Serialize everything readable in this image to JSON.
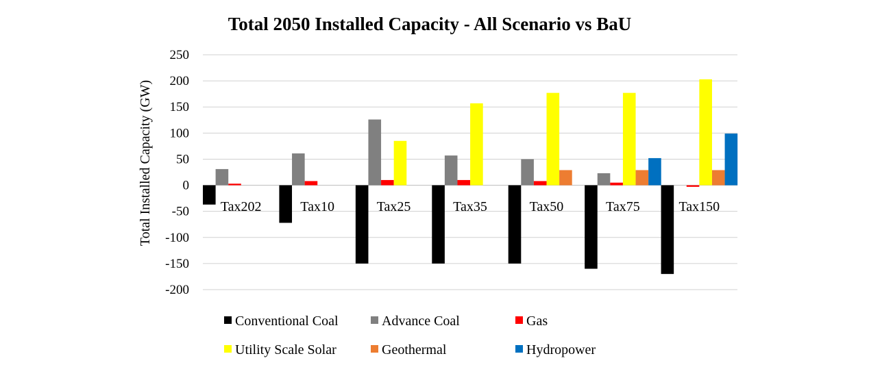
{
  "chart_data": {
    "type": "bar",
    "title": "Total 2050 Installed Capacity - All Scenario vs BaU",
    "xlabel": "",
    "ylabel": "Total Installed Capacity (GW)",
    "ylim": [
      -200,
      250
    ],
    "yticks": [
      250,
      200,
      150,
      100,
      50,
      0,
      -50,
      -100,
      -150,
      -200
    ],
    "grid": true,
    "legend_position": "bottom",
    "categories": [
      "Tax202",
      "Tax10",
      "Tax25",
      "Tax35",
      "Tax50",
      "Tax75",
      "Tax150"
    ],
    "series": [
      {
        "name": "Conventional Coal",
        "color": "#000000",
        "values": [
          -37,
          -72,
          -150,
          -150,
          -150,
          -160,
          -170
        ]
      },
      {
        "name": "Advance Coal",
        "color": "#808080",
        "values": [
          31,
          61,
          126,
          57,
          50,
          23,
          0
        ]
      },
      {
        "name": "Gas",
        "color": "#ff0000",
        "values": [
          3,
          8,
          10,
          10,
          8,
          5,
          -3
        ]
      },
      {
        "name": "Utility Scale Solar",
        "color": "#ffff00",
        "values": [
          0,
          0,
          85,
          157,
          177,
          177,
          203
        ]
      },
      {
        "name": "Geothermal",
        "color": "#ed7d31",
        "values": [
          0,
          0,
          0,
          0,
          29,
          29,
          29
        ]
      },
      {
        "name": "Hydropower",
        "color": "#0070c0",
        "values": [
          0,
          0,
          0,
          0,
          0,
          52,
          99
        ]
      }
    ]
  }
}
